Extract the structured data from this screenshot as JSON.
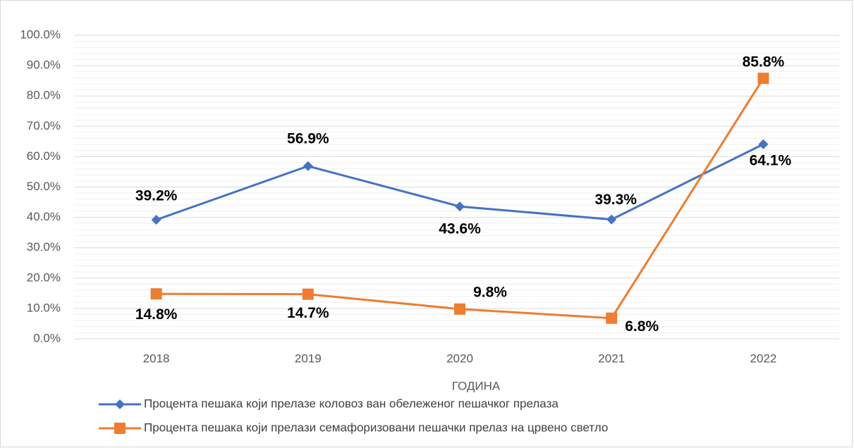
{
  "chart_data": {
    "type": "line",
    "x_label": "ГОДИНА",
    "categories": [
      "2018",
      "2019",
      "2020",
      "2021",
      "2022"
    ],
    "series": [
      {
        "name": "Процента пешака који прелазе коловоз ван обележеног пешачког прелаза",
        "color": "#4472c4",
        "marker": "diamond",
        "values": [
          39.2,
          56.9,
          43.6,
          39.3,
          64.1
        ],
        "value_labels": [
          "39.2%",
          "56.9%",
          "43.6%",
          "39.3%",
          "64.1%"
        ]
      },
      {
        "name": "Процента пешака који прелази семафоризовани пешачки прелаз на црвено светло",
        "color": "#ed7d31",
        "marker": "square",
        "values": [
          14.8,
          14.7,
          9.8,
          6.8,
          85.8
        ],
        "value_labels": [
          "14.8%",
          "14.7%",
          "9.8%",
          "6.8%",
          "85.8%"
        ]
      }
    ],
    "ylim": [
      0,
      100
    ],
    "yticks": [
      {
        "value": 0,
        "label": "0.0%"
      },
      {
        "value": 10,
        "label": "10.0%"
      },
      {
        "value": 20,
        "label": "20.0%"
      },
      {
        "value": 30,
        "label": "30.0%"
      },
      {
        "value": 40,
        "label": "40.0%"
      },
      {
        "value": 50,
        "label": "50.0%"
      },
      {
        "value": 60,
        "label": "60.0%"
      },
      {
        "value": 70,
        "label": "70.0%"
      },
      {
        "value": 80,
        "label": "80.0%"
      },
      {
        "value": 90,
        "label": "90.0%"
      },
      {
        "value": 100,
        "label": "100.0%"
      }
    ],
    "grid": true,
    "legend": "bottom"
  }
}
